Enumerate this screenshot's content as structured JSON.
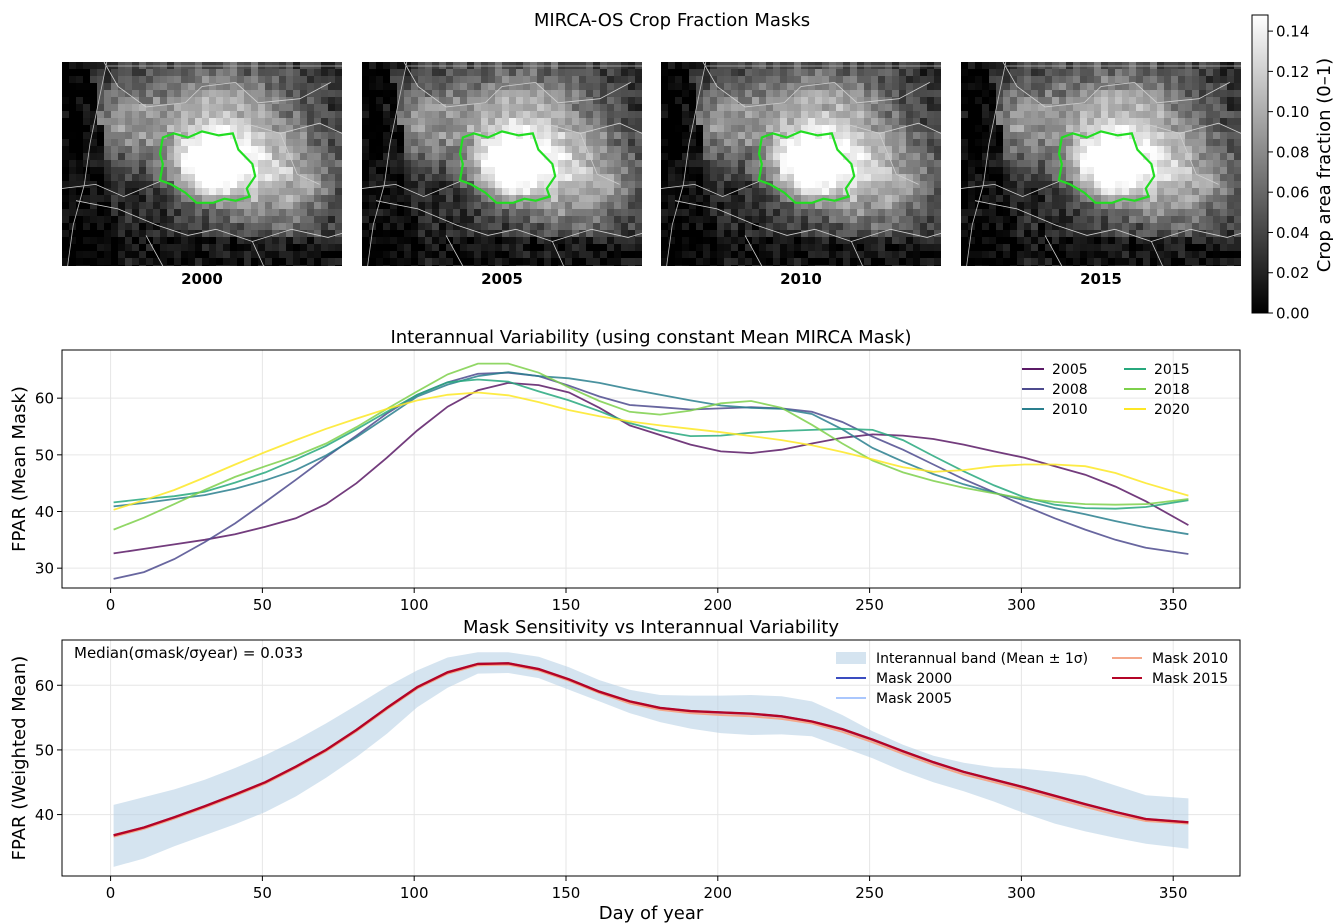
{
  "suptitle": "MIRCA-OS Crop Fraction Masks",
  "maps": {
    "years": [
      "2000",
      "2005",
      "2010",
      "2015"
    ]
  },
  "colorbar": {
    "label": "Crop area fraction (0–1)",
    "ticks": [
      "0.00",
      "0.02",
      "0.04",
      "0.06",
      "0.08",
      "0.10",
      "0.12",
      "0.14"
    ],
    "colormap": "gray",
    "range": [
      0,
      0.148
    ]
  },
  "outline_color": "#22dd22",
  "chart_data": [
    {
      "type": "line",
      "title": "Interannual Variability (using constant Mean MIRCA Mask)",
      "xlabel": "",
      "ylabel": "FPAR (Mean Mask)",
      "xlim": [
        -16,
        372
      ],
      "ylim": [
        26.5,
        68.5
      ],
      "xticks": [
        0,
        50,
        100,
        150,
        200,
        250,
        300,
        350
      ],
      "yticks": [
        30,
        40,
        50,
        60
      ],
      "grid": true,
      "legend": "top-right, 2 columns",
      "x": [
        1,
        11,
        21,
        31,
        41,
        51,
        61,
        71,
        81,
        91,
        101,
        111,
        121,
        131,
        141,
        151,
        161,
        171,
        181,
        191,
        201,
        211,
        221,
        231,
        241,
        251,
        261,
        271,
        281,
        291,
        301,
        311,
        321,
        331,
        341,
        355
      ],
      "series": [
        {
          "name": "2005",
          "color": "#5b1a66",
          "values": [
            32.6,
            33.4,
            34.2,
            35.0,
            36.0,
            37.3,
            38.8,
            41.3,
            45.0,
            49.5,
            54.3,
            58.5,
            61.4,
            62.7,
            62.3,
            61.0,
            58.3,
            55.2,
            53.5,
            51.8,
            50.6,
            50.3,
            50.9,
            52.0,
            53.0,
            53.6,
            53.4,
            52.8,
            51.8,
            50.6,
            49.5,
            48.0,
            46.5,
            44.4,
            41.8,
            37.6
          ]
        },
        {
          "name": "2008",
          "color": "#4e4b8e",
          "values": [
            28.1,
            29.3,
            31.6,
            34.6,
            37.9,
            41.7,
            45.6,
            49.6,
            53.4,
            57.3,
            60.6,
            62.8,
            64.3,
            64.5,
            63.9,
            62.2,
            60.3,
            58.8,
            58.4,
            58.0,
            58.2,
            58.4,
            58.2,
            57.6,
            55.8,
            53.2,
            50.9,
            48.3,
            45.7,
            43.4,
            41.0,
            38.8,
            36.8,
            35.0,
            33.6,
            32.5
          ]
        },
        {
          "name": "2010",
          "color": "#2a7f8e",
          "values": [
            40.9,
            41.5,
            42.2,
            42.9,
            44.0,
            45.5,
            47.3,
            49.9,
            53.1,
            56.7,
            60.3,
            62.4,
            63.9,
            64.6,
            63.9,
            63.5,
            62.7,
            61.6,
            60.6,
            59.6,
            58.7,
            58.3,
            58.1,
            57.2,
            54.5,
            51.2,
            48.8,
            46.6,
            44.8,
            43.3,
            42.0,
            40.6,
            39.5,
            38.3,
            37.2,
            36.0
          ]
        },
        {
          "name": "2015",
          "color": "#27a87e",
          "values": [
            41.6,
            42.2,
            42.7,
            43.5,
            45.1,
            46.9,
            49.2,
            51.6,
            54.5,
            57.6,
            60.6,
            62.8,
            63.3,
            62.9,
            61.2,
            59.6,
            57.7,
            55.6,
            54.2,
            53.3,
            53.4,
            53.9,
            54.2,
            54.4,
            54.6,
            54.4,
            52.6,
            49.8,
            47.1,
            44.6,
            42.5,
            41.2,
            40.6,
            40.5,
            40.8,
            42.0
          ]
        },
        {
          "name": "2018",
          "color": "#7ed04b",
          "values": [
            36.8,
            38.9,
            41.3,
            43.8,
            46.1,
            48.0,
            49.8,
            52.0,
            54.9,
            58.1,
            61.2,
            64.2,
            66.1,
            66.1,
            64.5,
            61.9,
            59.5,
            57.6,
            57.1,
            57.8,
            59.1,
            59.5,
            58.3,
            55.3,
            52.0,
            49.0,
            46.9,
            45.4,
            44.2,
            43.2,
            42.3,
            41.7,
            41.3,
            41.2,
            41.3,
            42.2
          ]
        },
        {
          "name": "2020",
          "color": "#fde725",
          "values": [
            40.3,
            42.0,
            43.8,
            46.0,
            48.3,
            50.5,
            52.6,
            54.6,
            56.4,
            58.1,
            59.6,
            60.6,
            61.0,
            60.5,
            59.3,
            57.9,
            56.8,
            55.9,
            55.2,
            54.6,
            54.0,
            53.3,
            52.6,
            51.7,
            50.5,
            49.2,
            47.8,
            47.0,
            47.3,
            48.0,
            48.3,
            48.3,
            48.0,
            46.8,
            45.0,
            42.8
          ]
        }
      ]
    },
    {
      "type": "line",
      "title": "Mask Sensitivity vs Interannual Variability",
      "xlabel": "Day of year",
      "ylabel": "FPAR (Weighted Mean)",
      "xlim": [
        -16,
        372
      ],
      "ylim": [
        30.5,
        67
      ],
      "xticks": [
        0,
        50,
        100,
        150,
        200,
        250,
        300,
        350
      ],
      "yticks": [
        40,
        50,
        60
      ],
      "grid": true,
      "legend": "top-right, 2 columns",
      "annotation": "Median(σmask/σyear) = 0.033",
      "x": [
        1,
        11,
        21,
        31,
        41,
        51,
        61,
        71,
        81,
        91,
        101,
        111,
        121,
        131,
        141,
        151,
        161,
        171,
        181,
        191,
        201,
        211,
        221,
        231,
        241,
        251,
        261,
        271,
        281,
        291,
        301,
        311,
        321,
        331,
        341,
        355
      ],
      "band": {
        "name": "Interannual band (Mean ± 1σ)",
        "color": "#b3cde3",
        "lower": [
          31.9,
          33.2,
          35.1,
          36.8,
          38.5,
          40.4,
          42.8,
          45.7,
          48.9,
          52.5,
          56.6,
          59.6,
          61.8,
          61.9,
          61.1,
          59.3,
          57.5,
          55.7,
          54.3,
          53.3,
          52.6,
          52.3,
          52.4,
          52.1,
          50.4,
          48.7,
          46.7,
          45.0,
          43.6,
          42.0,
          40.2,
          38.6,
          37.4,
          36.4,
          35.5,
          34.7
        ],
        "upper": [
          41.5,
          42.7,
          43.9,
          45.4,
          47.2,
          49.2,
          51.5,
          54.1,
          56.9,
          59.8,
          62.3,
          64.3,
          65.1,
          65.1,
          64.4,
          62.8,
          60.8,
          59.3,
          58.5,
          58.4,
          58.4,
          58.5,
          58.3,
          57.5,
          55.4,
          52.9,
          50.8,
          49.1,
          48.0,
          47.3,
          47.1,
          46.6,
          46.0,
          44.5,
          43.0,
          42.5
        ]
      },
      "series": [
        {
          "name": "Mask 2000",
          "color": "#3a4cc0",
          "values": [
            36.8,
            38.0,
            39.6,
            41.3,
            43.1,
            45.0,
            47.4,
            50.0,
            53.1,
            56.5,
            59.7,
            62.0,
            63.3,
            63.4,
            62.5,
            60.9,
            59.0,
            57.5,
            56.5,
            56.0,
            55.8,
            55.6,
            55.2,
            54.4,
            53.2,
            51.6,
            49.8,
            48.1,
            46.6,
            45.4,
            44.2,
            42.9,
            41.6,
            40.4,
            39.3,
            38.8
          ]
        },
        {
          "name": "Mask 2005",
          "color": "#aac7fd",
          "values": [
            36.7,
            37.9,
            39.5,
            41.2,
            43.0,
            44.9,
            47.3,
            49.9,
            53.0,
            56.4,
            59.6,
            61.9,
            63.2,
            63.3,
            62.4,
            60.8,
            58.9,
            57.4,
            56.4,
            55.9,
            55.7,
            55.5,
            55.1,
            54.3,
            53.1,
            51.5,
            49.7,
            48.0,
            46.5,
            45.3,
            44.1,
            42.8,
            41.5,
            40.3,
            39.2,
            38.7
          ]
        },
        {
          "name": "Mask 2010",
          "color": "#f4a78a",
          "values": [
            36.6,
            37.8,
            39.4,
            41.1,
            42.9,
            44.8,
            47.2,
            49.8,
            52.9,
            56.3,
            59.5,
            61.8,
            63.1,
            63.2,
            62.3,
            60.7,
            58.8,
            57.2,
            56.2,
            55.7,
            55.4,
            55.2,
            54.8,
            54.1,
            52.8,
            51.2,
            49.4,
            47.7,
            46.2,
            45.0,
            43.8,
            42.5,
            41.2,
            40.0,
            39.0,
            38.6
          ]
        },
        {
          "name": "Mask 2015",
          "color": "#b40426",
          "values": [
            36.8,
            38.0,
            39.6,
            41.3,
            43.1,
            45.0,
            47.4,
            50.0,
            53.1,
            56.5,
            59.7,
            62.0,
            63.3,
            63.4,
            62.5,
            60.9,
            59.0,
            57.5,
            56.5,
            56.0,
            55.8,
            55.6,
            55.2,
            54.4,
            53.2,
            51.6,
            49.8,
            48.1,
            46.6,
            45.4,
            44.2,
            42.9,
            41.6,
            40.4,
            39.3,
            38.8
          ]
        }
      ]
    }
  ]
}
